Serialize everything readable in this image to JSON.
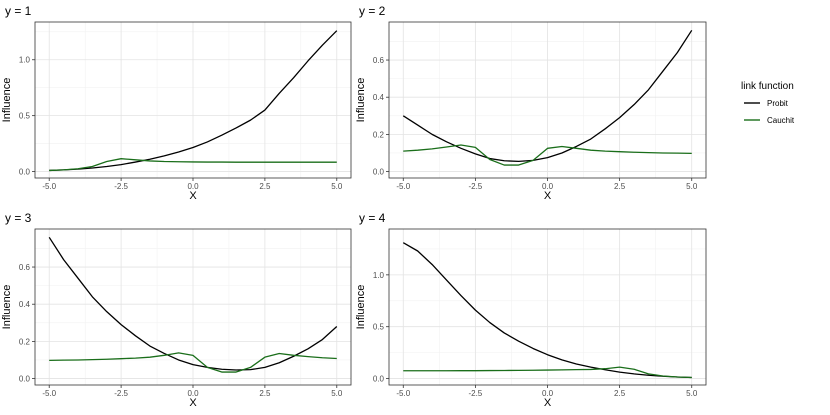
{
  "legend": {
    "title": "link function",
    "placement": "right",
    "items": [
      {
        "label": "Probit",
        "color": "#000000"
      },
      {
        "label": "Cauchit",
        "color": "#1a6e1a"
      }
    ]
  },
  "chart_data": [
    {
      "type": "line",
      "title": "y = 1",
      "xlabel": "X",
      "ylabel": "Influence",
      "xlim": [
        -5.0,
        5.0
      ],
      "ylim": [
        0.0,
        1.28
      ],
      "xticks": [
        "-5.0",
        "-2.5",
        "0.0",
        "2.5",
        "5.0"
      ],
      "yticks": [
        "0.0",
        "0.5",
        "1.0"
      ],
      "ytick_values": [
        0.0,
        0.5,
        1.0
      ],
      "grid": true,
      "series": [
        {
          "name": "Probit",
          "x": [
            -5,
            -4.5,
            -4,
            -3.5,
            -3,
            -2.5,
            -2,
            -1.5,
            -1,
            -0.5,
            0,
            0.5,
            1,
            1.5,
            2,
            2.5,
            3,
            3.5,
            4,
            4.5,
            5
          ],
          "values": [
            0.01,
            0.015,
            0.022,
            0.032,
            0.045,
            0.062,
            0.085,
            0.11,
            0.14,
            0.175,
            0.215,
            0.265,
            0.325,
            0.39,
            0.46,
            0.55,
            0.7,
            0.84,
            0.99,
            1.13,
            1.26
          ]
        },
        {
          "name": "Cauchit",
          "x": [
            -5,
            -4.5,
            -4,
            -3.5,
            -3,
            -2.5,
            -2,
            -1.5,
            -1,
            -0.5,
            0,
            0.5,
            1,
            1.5,
            2,
            2.5,
            3,
            3.5,
            4,
            4.5,
            5
          ],
          "values": [
            0.01,
            0.015,
            0.025,
            0.045,
            0.09,
            0.115,
            0.105,
            0.095,
            0.09,
            0.088,
            0.086,
            0.085,
            0.085,
            0.084,
            0.084,
            0.084,
            0.084,
            0.084,
            0.084,
            0.084,
            0.084
          ]
        }
      ]
    },
    {
      "type": "line",
      "title": "y = 2",
      "xlabel": "X",
      "ylabel": "Influence",
      "xlim": [
        -5.0,
        5.0
      ],
      "ylim": [
        0.0,
        0.77
      ],
      "xticks": [
        "-5.0",
        "-2.5",
        "0.0",
        "2.5",
        "5.0"
      ],
      "yticks": [
        "0.0",
        "0.2",
        "0.4",
        "0.6"
      ],
      "ytick_values": [
        0.0,
        0.2,
        0.4,
        0.6
      ],
      "grid": true,
      "series": [
        {
          "name": "Probit",
          "x": [
            -5,
            -4.5,
            -4,
            -3.5,
            -3,
            -2.5,
            -2,
            -1.5,
            -1,
            -0.5,
            0,
            0.5,
            1,
            1.5,
            2,
            2.5,
            3,
            3.5,
            4,
            4.5,
            5
          ],
          "values": [
            0.3,
            0.25,
            0.2,
            0.16,
            0.125,
            0.095,
            0.07,
            0.058,
            0.055,
            0.06,
            0.075,
            0.1,
            0.135,
            0.175,
            0.23,
            0.29,
            0.36,
            0.44,
            0.54,
            0.64,
            0.76
          ]
        },
        {
          "name": "Cauchit",
          "x": [
            -5,
            -4.5,
            -4,
            -3.5,
            -3,
            -2.5,
            -2,
            -1.5,
            -1,
            -0.5,
            0,
            0.5,
            1,
            1.5,
            2,
            2.5,
            3,
            3.5,
            4,
            4.5,
            5
          ],
          "values": [
            0.11,
            0.115,
            0.122,
            0.132,
            0.143,
            0.13,
            0.065,
            0.035,
            0.035,
            0.06,
            0.125,
            0.135,
            0.125,
            0.115,
            0.11,
            0.107,
            0.104,
            0.102,
            0.1,
            0.099,
            0.098
          ]
        }
      ]
    },
    {
      "type": "line",
      "title": "y = 3",
      "xlabel": "X",
      "ylabel": "Influence",
      "xlim": [
        -5.0,
        5.0
      ],
      "ylim": [
        0.0,
        0.77
      ],
      "xticks": [
        "-5.0",
        "-2.5",
        "0.0",
        "2.5",
        "5.0"
      ],
      "yticks": [
        "0.0",
        "0.2",
        "0.4",
        "0.6"
      ],
      "ytick_values": [
        0.0,
        0.2,
        0.4,
        0.6
      ],
      "grid": true,
      "series": [
        {
          "name": "Probit",
          "x": [
            -5,
            -4.5,
            -4,
            -3.5,
            -3,
            -2.5,
            -2,
            -1.5,
            -1,
            -0.5,
            0,
            0.5,
            1,
            1.5,
            2,
            2.5,
            3,
            3.5,
            4,
            4.5,
            5
          ],
          "values": [
            0.76,
            0.64,
            0.54,
            0.44,
            0.36,
            0.29,
            0.23,
            0.175,
            0.135,
            0.1,
            0.075,
            0.06,
            0.05,
            0.046,
            0.048,
            0.06,
            0.085,
            0.12,
            0.16,
            0.21,
            0.28
          ]
        },
        {
          "name": "Cauchit",
          "x": [
            -5,
            -4.5,
            -4,
            -3.5,
            -3,
            -2.5,
            -2,
            -1.5,
            -1,
            -0.5,
            0,
            0.5,
            1,
            1.5,
            2,
            2.5,
            3,
            3.5,
            4,
            4.5,
            5
          ],
          "values": [
            0.098,
            0.099,
            0.1,
            0.102,
            0.104,
            0.107,
            0.11,
            0.115,
            0.125,
            0.138,
            0.125,
            0.06,
            0.035,
            0.035,
            0.06,
            0.115,
            0.135,
            0.125,
            0.118,
            0.112,
            0.108
          ]
        }
      ]
    },
    {
      "type": "line",
      "title": "y = 4",
      "xlabel": "X",
      "ylabel": "Influence",
      "xlim": [
        -5.0,
        5.0
      ],
      "ylim": [
        0.0,
        1.38
      ],
      "xticks": [
        "-5.0",
        "-2.5",
        "0.0",
        "2.5",
        "5.0"
      ],
      "yticks": [
        "0.0",
        "0.5",
        "1.0"
      ],
      "ytick_values": [
        0.0,
        0.5,
        1.0
      ],
      "grid": true,
      "series": [
        {
          "name": "Probit",
          "x": [
            -5,
            -4.5,
            -4,
            -3.5,
            -3,
            -2.5,
            -2,
            -1.5,
            -1,
            -0.5,
            0,
            0.5,
            1,
            1.5,
            2,
            2.5,
            3,
            3.5,
            4,
            4.5,
            5
          ],
          "values": [
            1.31,
            1.23,
            1.1,
            0.95,
            0.8,
            0.66,
            0.54,
            0.44,
            0.36,
            0.29,
            0.23,
            0.18,
            0.14,
            0.11,
            0.085,
            0.062,
            0.045,
            0.032,
            0.022,
            0.015,
            0.01
          ]
        },
        {
          "name": "Cauchit",
          "x": [
            -5,
            -4.5,
            -4,
            -3.5,
            -3,
            -2.5,
            -2,
            -1.5,
            -1,
            -0.5,
            0,
            0.5,
            1,
            1.5,
            2,
            2.5,
            3,
            3.5,
            4,
            4.5,
            5
          ],
          "values": [
            0.075,
            0.075,
            0.075,
            0.075,
            0.076,
            0.076,
            0.077,
            0.078,
            0.079,
            0.08,
            0.082,
            0.084,
            0.086,
            0.088,
            0.095,
            0.11,
            0.09,
            0.045,
            0.025,
            0.015,
            0.01
          ]
        }
      ]
    }
  ]
}
